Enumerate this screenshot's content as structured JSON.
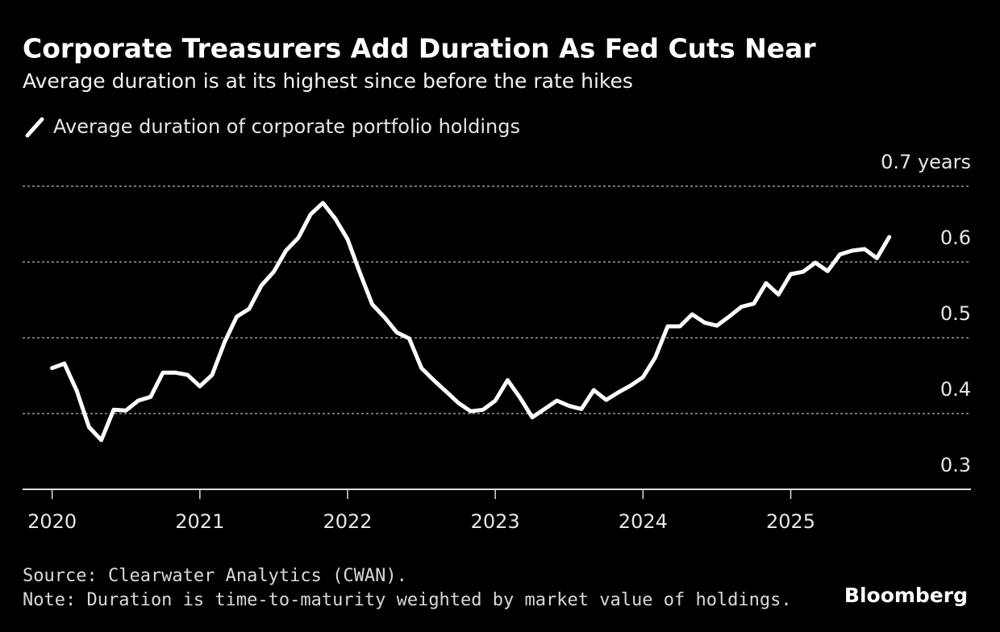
{
  "chart_data": {
    "type": "line",
    "title": "Corporate Treasurers Add Duration As Fed Cuts Near",
    "subtitle": "Average duration is at its highest since before the rate hikes",
    "x": [
      2020,
      2020.083,
      2020.167,
      2020.25,
      2020.333,
      2020.417,
      2020.5,
      2020.583,
      2020.667,
      2020.75,
      2020.833,
      2020.917,
      2021,
      2021.083,
      2021.167,
      2021.25,
      2021.333,
      2021.417,
      2021.5,
      2021.583,
      2021.667,
      2021.75,
      2021.833,
      2021.917,
      2022,
      2022.083,
      2022.167,
      2022.25,
      2022.333,
      2022.417,
      2022.5,
      2022.583,
      2022.667,
      2022.75,
      2022.833,
      2022.917,
      2023,
      2023.083,
      2023.167,
      2023.25,
      2023.333,
      2023.417,
      2023.5,
      2023.583,
      2023.667,
      2023.75,
      2023.833,
      2023.917,
      2024,
      2024.083,
      2024.167,
      2024.25,
      2024.333,
      2024.417,
      2024.5,
      2024.583,
      2024.667,
      2024.75,
      2024.833,
      2024.917,
      2025,
      2025.083,
      2025.167,
      2025.25,
      2025.333,
      2025.417,
      2025.5,
      2025.583,
      2025.667
    ],
    "series": [
      {
        "name": "Average duration of corporate portfolio holdings",
        "color": "#ffffff",
        "values": [
          0.46,
          0.466,
          0.43,
          0.382,
          0.365,
          0.405,
          0.404,
          0.417,
          0.422,
          0.454,
          0.454,
          0.451,
          0.436,
          0.451,
          0.494,
          0.528,
          0.538,
          0.569,
          0.587,
          0.615,
          0.632,
          0.663,
          0.678,
          0.657,
          0.63,
          0.586,
          0.544,
          0.527,
          0.507,
          0.499,
          0.46,
          0.444,
          0.429,
          0.414,
          0.403,
          0.405,
          0.417,
          0.444,
          0.421,
          0.395,
          0.406,
          0.417,
          0.41,
          0.406,
          0.431,
          0.418,
          0.428,
          0.437,
          0.448,
          0.474,
          0.515,
          0.515,
          0.531,
          0.52,
          0.516,
          0.528,
          0.541,
          0.545,
          0.572,
          0.557,
          0.584,
          0.587,
          0.599,
          0.588,
          0.61,
          0.615,
          0.617,
          0.605,
          0.633
        ]
      }
    ],
    "xlim": [
      2019.8,
      2026.22
    ],
    "xticks": [
      2020,
      2021,
      2022,
      2023,
      2024,
      2025
    ],
    "ylim": [
      0.3,
      0.7
    ],
    "yticks": [
      0.3,
      0.4,
      0.5,
      0.6,
      {
        "value": 0.7,
        "label": "0.7 years"
      }
    ],
    "grid": true,
    "source": "Source: Clearwater Analytics (CWAN).",
    "note": "Note: Duration is time-to-maturity weighted by market value of holdings.",
    "brand": "Bloomberg"
  }
}
